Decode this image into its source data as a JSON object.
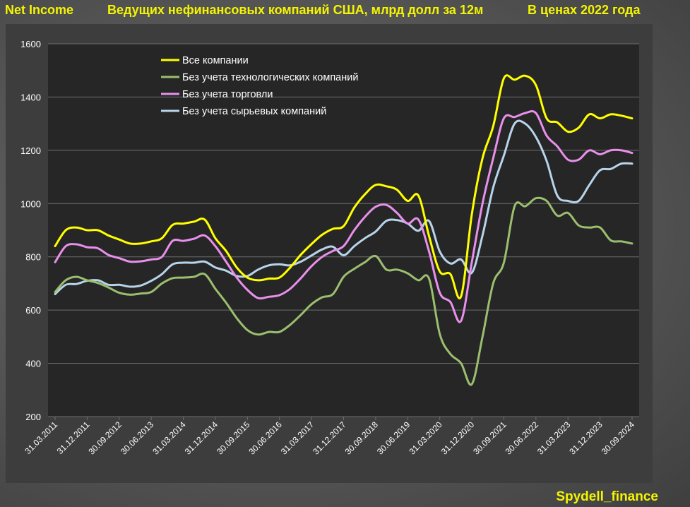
{
  "header": {
    "left": "Net Income",
    "title": "Ведущих нефинансовых компаний США, млрд долл за 12м",
    "subtitle": "В ценах 2022 года"
  },
  "footer": {
    "credit": "Spydell_finance"
  },
  "colors": {
    "plot_bg": "#262626",
    "grid": "#6e6e6e",
    "text": "#ffffff",
    "title": "#f5f500"
  },
  "chart_data": {
    "type": "line",
    "title": "Ведущих нефинансовых компаний США, млрд долл за 12м",
    "xlabel": "",
    "ylabel": "",
    "ylim": [
      200,
      1600
    ],
    "yticks": [
      "200",
      "400",
      "600",
      "800",
      "1000",
      "1200",
      "1400",
      "1600"
    ],
    "grid": true,
    "legend_position": "top-left",
    "x": [
      "31.03.2011",
      "30.06.2011",
      "30.09.2011",
      "31.12.2011",
      "31.03.2012",
      "30.06.2012",
      "30.09.2012",
      "31.12.2012",
      "31.03.2013",
      "30.06.2013",
      "30.09.2013",
      "31.12.2013",
      "31.03.2014",
      "30.06.2014",
      "30.09.2014",
      "31.12.2014",
      "31.03.2015",
      "30.06.2015",
      "30.09.2015",
      "31.12.2015",
      "31.03.2016",
      "30.06.2016",
      "30.09.2016",
      "31.12.2016",
      "31.03.2017",
      "30.06.2017",
      "30.09.2017",
      "31.12.2017",
      "31.03.2018",
      "30.06.2018",
      "30.09.2018",
      "31.12.2018",
      "31.03.2019",
      "30.06.2019",
      "30.09.2019",
      "31.12.2019",
      "31.03.2020",
      "30.06.2020",
      "30.09.2020",
      "31.12.2020",
      "31.03.2021",
      "30.06.2021",
      "30.09.2021",
      "31.12.2021",
      "31.03.2022",
      "30.06.2022",
      "30.09.2022",
      "31.12.2022",
      "31.03.2023",
      "30.06.2023",
      "30.09.2023",
      "31.12.2023",
      "31.03.2024",
      "30.06.2024",
      "30.09.2024"
    ],
    "xtick_labels": [
      "31.03.2011",
      "31.12.2011",
      "30.09.2012",
      "30.06.2013",
      "31.03.2014",
      "31.12.2014",
      "30.09.2015",
      "30.06.2016",
      "31.03.2017",
      "31.12.2017",
      "30.09.2018",
      "30.06.2019",
      "31.03.2020",
      "31.12.2020",
      "30.09.2021",
      "30.06.2022",
      "31.03.2023",
      "31.12.2023",
      "30.09.2024"
    ],
    "series": [
      {
        "name": "Все компании",
        "color": "#ffff00",
        "values": [
          840,
          900,
          910,
          900,
          900,
          880,
          865,
          850,
          850,
          858,
          870,
          920,
          925,
          932,
          940,
          870,
          822,
          760,
          722,
          712,
          718,
          722,
          760,
          808,
          848,
          883,
          905,
          915,
          985,
          1035,
          1070,
          1065,
          1052,
          1010,
          1030,
          878,
          745,
          735,
          652,
          960,
          1170,
          1290,
          1470,
          1465,
          1480,
          1445,
          1320,
          1305,
          1270,
          1285,
          1335,
          1320,
          1335,
          1330,
          1320
        ]
      },
      {
        "name": "Без учета технологических компаний",
        "color": "#9bbf6e",
        "values": [
          668,
          712,
          725,
          712,
          702,
          685,
          665,
          658,
          662,
          668,
          700,
          720,
          722,
          725,
          735,
          680,
          628,
          570,
          525,
          508,
          518,
          518,
          545,
          582,
          622,
          648,
          660,
          725,
          755,
          780,
          803,
          752,
          752,
          738,
          712,
          718,
          510,
          435,
          400,
          322,
          500,
          700,
          778,
          990,
          990,
          1020,
          1010,
          955,
          965,
          918,
          910,
          910,
          862,
          858,
          850
        ]
      },
      {
        "name": "Без учета торговли",
        "color": "#e890ec",
        "values": [
          780,
          840,
          847,
          836,
          832,
          807,
          795,
          782,
          783,
          790,
          800,
          860,
          860,
          868,
          880,
          840,
          782,
          722,
          676,
          645,
          650,
          656,
          680,
          720,
          765,
          800,
          822,
          840,
          900,
          950,
          988,
          995,
          965,
          925,
          940,
          820,
          665,
          630,
          560,
          780,
          1000,
          1170,
          1320,
          1325,
          1340,
          1340,
          1255,
          1215,
          1165,
          1165,
          1200,
          1185,
          1200,
          1200,
          1190
        ]
      },
      {
        "name": "Без учета сырьевых компаний",
        "color": "#b8d4ea",
        "values": [
          660,
          695,
          698,
          710,
          712,
          695,
          695,
          688,
          692,
          710,
          735,
          772,
          778,
          778,
          782,
          760,
          748,
          728,
          728,
          752,
          768,
          772,
          768,
          782,
          805,
          828,
          838,
          806,
          840,
          870,
          895,
          935,
          938,
          925,
          898,
          935,
          820,
          775,
          790,
          740,
          880,
          1060,
          1180,
          1300,
          1300,
          1250,
          1160,
          1030,
          1010,
          1010,
          1070,
          1125,
          1130,
          1150,
          1150
        ]
      }
    ]
  }
}
